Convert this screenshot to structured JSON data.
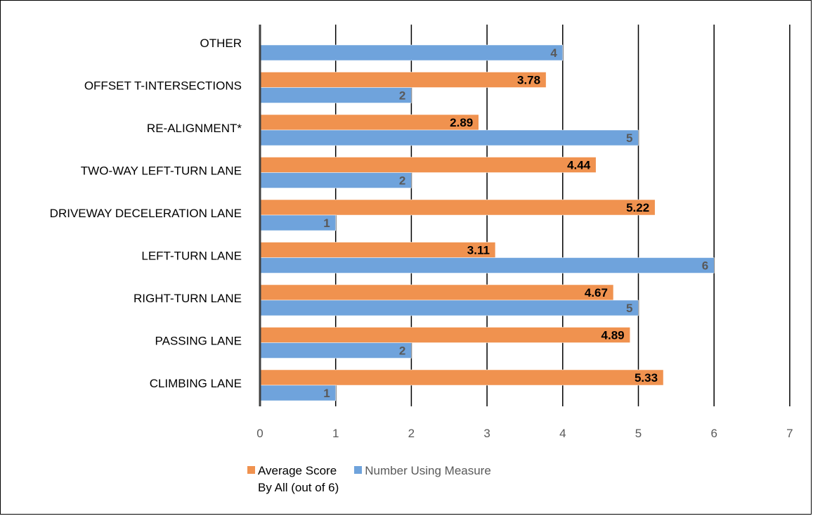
{
  "chart_data": {
    "type": "bar",
    "orientation": "horizontal",
    "categories": [
      "OTHER",
      "OFFSET T-INTERSECTIONS",
      "RE-ALIGNMENT*",
      "TWO-WAY LEFT-TURN LANE",
      "DRIVEWAY DECELERATION LANE",
      "LEFT-TURN LANE",
      "RIGHT-TURN LANE",
      "PASSING LANE",
      "CLIMBING LANE"
    ],
    "series": [
      {
        "name": "Average Score By All (out of 6)",
        "color": "#F0924F",
        "label_color": "#000000",
        "values": [
          null,
          3.78,
          2.89,
          4.44,
          5.22,
          3.11,
          4.67,
          4.89,
          5.33
        ],
        "labels": [
          "",
          "3.78",
          "2.89",
          "4.44",
          "5.22",
          "3.11",
          "4.67",
          "4.89",
          "5.33"
        ]
      },
      {
        "name": "Number Using Measure",
        "color": "#6FA3DC",
        "label_color": "#595959",
        "values": [
          4,
          2,
          5,
          2,
          1,
          6,
          5,
          2,
          1
        ],
        "labels": [
          "4",
          "2",
          "5",
          "2",
          "1",
          "6",
          "5",
          "2",
          "1"
        ]
      }
    ],
    "xlim": [
      0,
      7
    ],
    "xticks": [
      "0",
      "1",
      "2",
      "3",
      "4",
      "5",
      "6",
      "7"
    ],
    "grid": "vertical",
    "legend_position": "bottom"
  },
  "legend": {
    "score_label": "Average Score\nBy All (out of 6)",
    "count_label": "Number Using Measure",
    "score_color": "#F0924F",
    "count_color": "#6FA3DC"
  }
}
